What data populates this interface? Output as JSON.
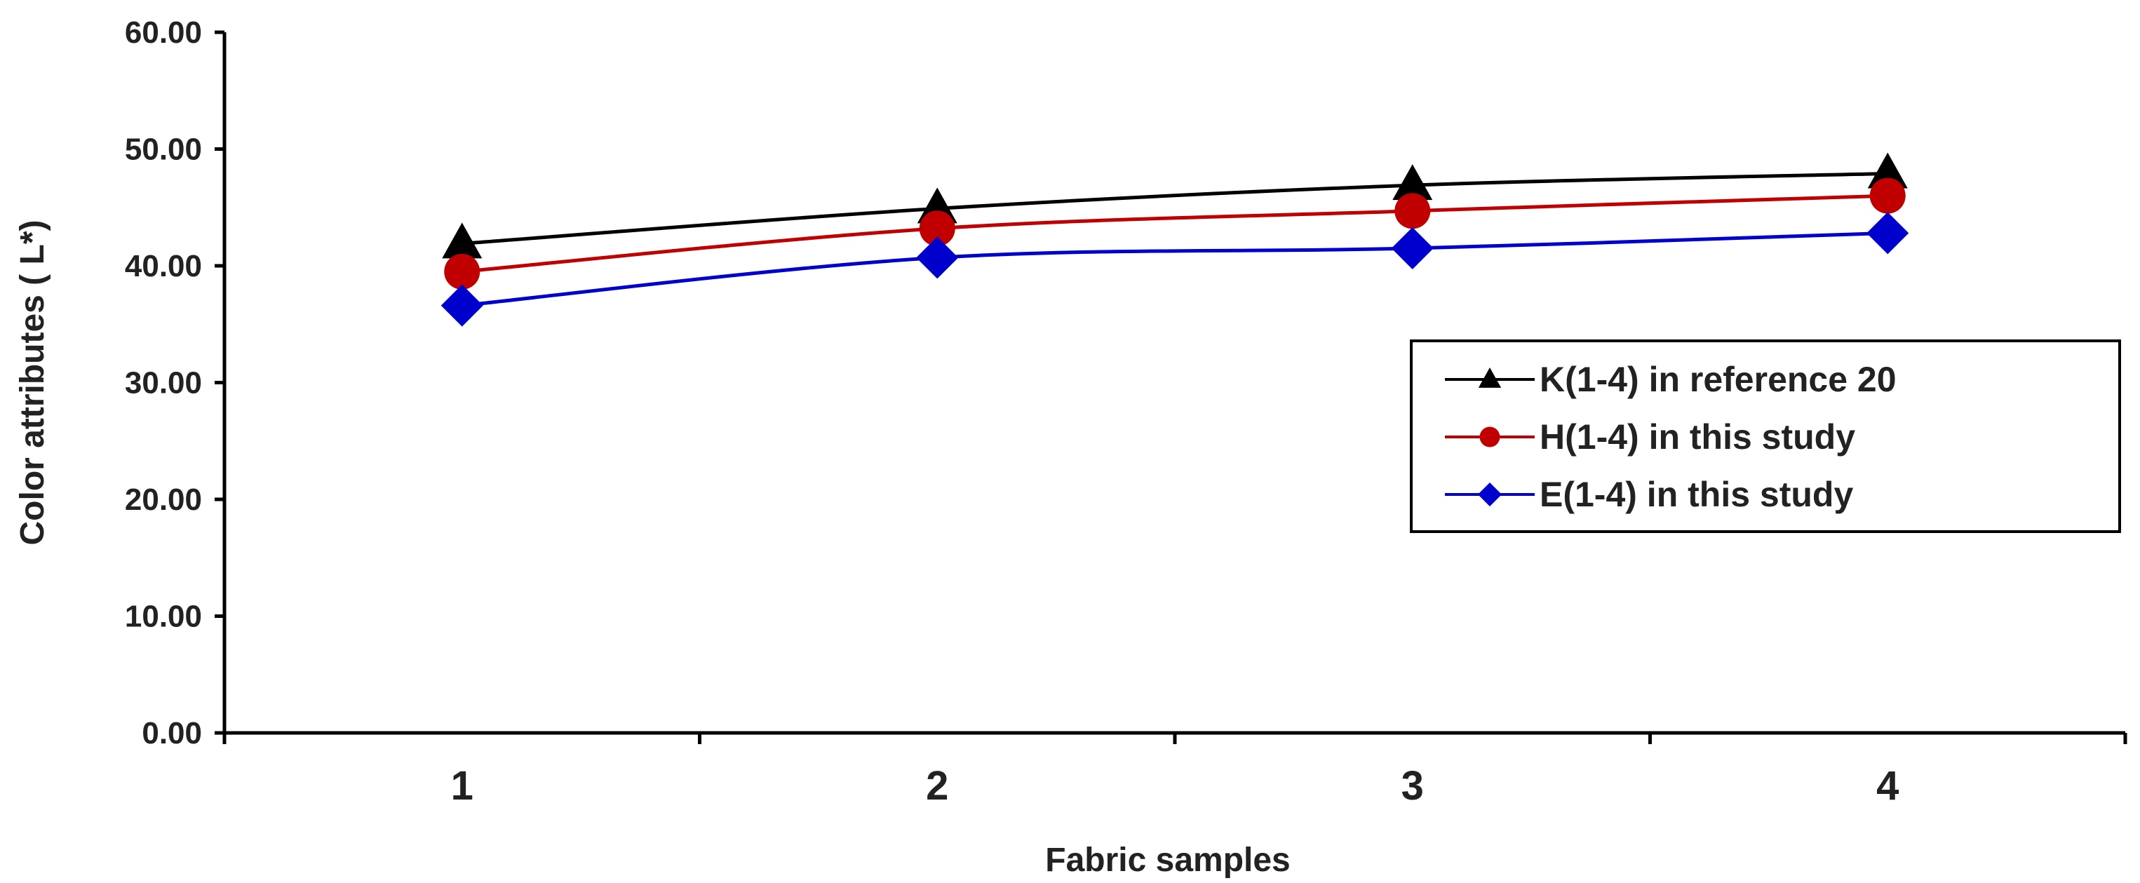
{
  "chart_data": {
    "type": "line",
    "title": "",
    "xlabel": "Fabric samples",
    "ylabel": "Color attributes ( L*)",
    "categories": [
      "1",
      "2",
      "3",
      "4"
    ],
    "ylim": [
      0,
      60
    ],
    "y_ticks": [
      "0.00",
      "10.00",
      "20.00",
      "30.00",
      "40.00",
      "50.00",
      "60.00"
    ],
    "grid": false,
    "legend_position": "right",
    "series": [
      {
        "name": "K(1-4) in reference 20",
        "values": [
          41.9,
          44.9,
          46.9,
          47.9
        ],
        "color": "#000000",
        "marker": "triangle"
      },
      {
        "name": "H(1-4) in this study",
        "values": [
          39.5,
          43.2,
          44.7,
          46.0
        ],
        "color": "#c00000",
        "marker": "circle"
      },
      {
        "name": "E(1-4) in this study",
        "values": [
          36.6,
          40.7,
          41.5,
          42.8
        ],
        "color": "#0000cc",
        "marker": "diamond"
      }
    ]
  }
}
